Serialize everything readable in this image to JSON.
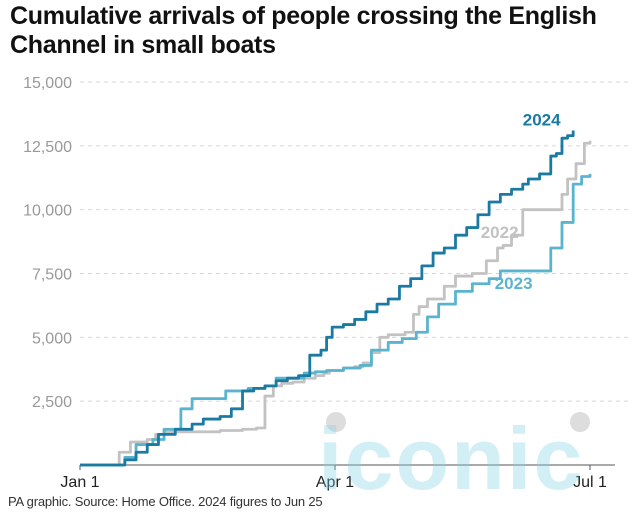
{
  "title": "Cumulative arrivals of people crossing the English Channel in small boats",
  "source": "PA graphic. Source: Home Office. 2024 figures to Jun 25",
  "watermark": "iconic",
  "chart_data": {
    "type": "line",
    "title": "Cumulative arrivals of people crossing the English Channel in small boats",
    "xlabel": "",
    "ylabel": "",
    "x_unit": "day of year",
    "x_ticks": [
      {
        "label": "Jan 1",
        "day": 0
      },
      {
        "label": "Apr 1",
        "day": 91
      },
      {
        "label": "Jul 1",
        "day": 182
      }
    ],
    "xlim": [
      0,
      182
    ],
    "ylim": [
      0,
      15000
    ],
    "y_ticks": [
      "2,500",
      "5,000",
      "7,500",
      "10,000",
      "12,500",
      "15,000"
    ],
    "y_tick_values": [
      2500,
      5000,
      7500,
      10000,
      12500,
      15000
    ],
    "grid": "horizontal dashed",
    "series": [
      {
        "name": "2022",
        "color": "#c2c2c2",
        "points": [
          [
            0,
            0
          ],
          [
            10,
            0
          ],
          [
            14,
            500
          ],
          [
            18,
            900
          ],
          [
            24,
            1000
          ],
          [
            27,
            1200
          ],
          [
            30,
            1300
          ],
          [
            42,
            1300
          ],
          [
            50,
            1350
          ],
          [
            58,
            1400
          ],
          [
            63,
            1450
          ],
          [
            66,
            2700
          ],
          [
            69,
            3100
          ],
          [
            72,
            3200
          ],
          [
            76,
            3250
          ],
          [
            80,
            3400
          ],
          [
            84,
            3500
          ],
          [
            87,
            3600
          ],
          [
            89,
            3700
          ],
          [
            94,
            3800
          ],
          [
            98,
            3850
          ],
          [
            101,
            4000
          ],
          [
            104,
            4400
          ],
          [
            107,
            5000
          ],
          [
            110,
            5100
          ],
          [
            116,
            5200
          ],
          [
            119,
            5900
          ],
          [
            121,
            6200
          ],
          [
            124,
            6500
          ],
          [
            130,
            7000
          ],
          [
            134,
            7400
          ],
          [
            140,
            7500
          ],
          [
            145,
            8000
          ],
          [
            149,
            8500
          ],
          [
            151,
            8600
          ],
          [
            154,
            9000
          ],
          [
            158,
            10000
          ],
          [
            165,
            10000
          ],
          [
            172,
            10600
          ],
          [
            174,
            11200
          ],
          [
            177,
            11800
          ],
          [
            180,
            12600
          ],
          [
            182,
            12700
          ]
        ]
      },
      {
        "name": "2023",
        "color": "#5ab4d0",
        "points": [
          [
            0,
            0
          ],
          [
            12,
            0
          ],
          [
            16,
            300
          ],
          [
            20,
            800
          ],
          [
            26,
            1000
          ],
          [
            30,
            1400
          ],
          [
            36,
            2200
          ],
          [
            40,
            2600
          ],
          [
            46,
            2600
          ],
          [
            52,
            2900
          ],
          [
            60,
            3000
          ],
          [
            66,
            3100
          ],
          [
            70,
            3400
          ],
          [
            76,
            3400
          ],
          [
            80,
            3600
          ],
          [
            84,
            3650
          ],
          [
            88,
            3700
          ],
          [
            94,
            3800
          ],
          [
            100,
            3900
          ],
          [
            104,
            4500
          ],
          [
            110,
            4800
          ],
          [
            115,
            4950
          ],
          [
            120,
            5200
          ],
          [
            124,
            5800
          ],
          [
            128,
            6300
          ],
          [
            134,
            6800
          ],
          [
            140,
            7100
          ],
          [
            146,
            7300
          ],
          [
            150,
            7600
          ],
          [
            160,
            7600
          ],
          [
            166,
            7600
          ],
          [
            168,
            8500
          ],
          [
            172,
            9500
          ],
          [
            176,
            11000
          ],
          [
            179,
            11300
          ],
          [
            182,
            11400
          ]
        ]
      },
      {
        "name": "2024",
        "color": "#1b7aa1",
        "points": [
          [
            0,
            0
          ],
          [
            12,
            0
          ],
          [
            16,
            200
          ],
          [
            20,
            500
          ],
          [
            24,
            800
          ],
          [
            28,
            1200
          ],
          [
            34,
            1400
          ],
          [
            40,
            1600
          ],
          [
            44,
            1800
          ],
          [
            50,
            1900
          ],
          [
            54,
            2200
          ],
          [
            58,
            2900
          ],
          [
            62,
            3000
          ],
          [
            66,
            3100
          ],
          [
            70,
            3300
          ],
          [
            74,
            3400
          ],
          [
            78,
            3500
          ],
          [
            82,
            4300
          ],
          [
            86,
            4500
          ],
          [
            88,
            5000
          ],
          [
            90,
            5400
          ],
          [
            94,
            5500
          ],
          [
            98,
            5700
          ],
          [
            102,
            6000
          ],
          [
            106,
            6300
          ],
          [
            110,
            6500
          ],
          [
            114,
            7000
          ],
          [
            118,
            7300
          ],
          [
            122,
            7800
          ],
          [
            126,
            8300
          ],
          [
            130,
            8500
          ],
          [
            134,
            9000
          ],
          [
            138,
            9300
          ],
          [
            142,
            9800
          ],
          [
            146,
            10300
          ],
          [
            150,
            10600
          ],
          [
            154,
            10800
          ],
          [
            158,
            11000
          ],
          [
            160,
            11200
          ],
          [
            164,
            11400
          ],
          [
            166,
            11400
          ],
          [
            168,
            12100
          ],
          [
            170,
            12200
          ],
          [
            172,
            12800
          ],
          [
            174,
            12900
          ],
          [
            176,
            13100
          ]
        ]
      }
    ],
    "series_labels": [
      {
        "name": "2024",
        "at_day": 158,
        "at_value": 13300
      },
      {
        "name": "2022",
        "at_day": 143,
        "at_value": 8900
      },
      {
        "name": "2023",
        "at_day": 148,
        "at_value": 6900
      }
    ]
  }
}
